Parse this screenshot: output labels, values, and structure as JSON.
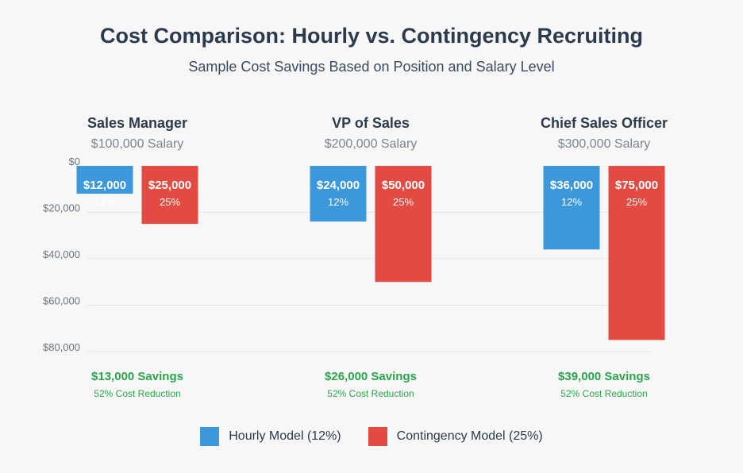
{
  "colors": {
    "hourly": "#3b99db",
    "contingency": "#e34b42",
    "savings": "#2aa54b"
  },
  "chart_data": {
    "type": "bar",
    "title": "Cost Comparison: Hourly vs. Contingency Recruiting",
    "subtitle": "Sample Cost Savings Based on Position and Salary Level",
    "y_ticks": [
      "$0",
      "$20,000",
      "$40,000",
      "$60,000",
      "$80,000"
    ],
    "y_tick_values": [
      0,
      20000,
      40000,
      60000,
      80000
    ],
    "ylim": [
      0,
      80000
    ],
    "y_direction": "downward",
    "groups": [
      {
        "name": "Sales Manager",
        "salary": "$100,000 Salary",
        "hourly": 12000,
        "hourly_label": "$12,000",
        "hourly_pct": "12%",
        "contingency": 25000,
        "contingency_label": "$25,000",
        "contingency_pct": "25%",
        "savings": "$13,000 Savings",
        "reduction": "52% Cost Reduction"
      },
      {
        "name": "VP of Sales",
        "salary": "$200,000 Salary",
        "hourly": 24000,
        "hourly_label": "$24,000",
        "hourly_pct": "12%",
        "contingency": 50000,
        "contingency_label": "$50,000",
        "contingency_pct": "25%",
        "savings": "$26,000 Savings",
        "reduction": "52% Cost Reduction"
      },
      {
        "name": "Chief Sales Officer",
        "salary": "$300,000 Salary",
        "hourly": 36000,
        "hourly_label": "$36,000",
        "hourly_pct": "12%",
        "contingency": 75000,
        "contingency_label": "$75,000",
        "contingency_pct": "25%",
        "savings": "$39,000 Savings",
        "reduction": "52% Cost Reduction"
      }
    ],
    "legend": [
      {
        "key": "hourly",
        "label": "Hourly Model (12%)"
      },
      {
        "key": "contingency",
        "label": "Contingency Model (25%)"
      }
    ]
  }
}
